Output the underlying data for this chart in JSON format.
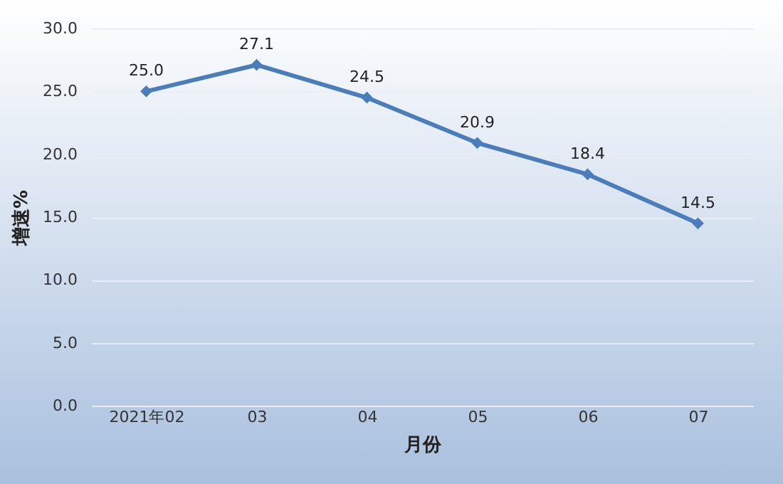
{
  "chart_data": {
    "type": "line",
    "xlabel": "月份",
    "ylabel": "增速%",
    "categories": [
      "2021年02",
      "03",
      "04",
      "05",
      "06",
      "07"
    ],
    "series": [
      {
        "color": "#4a7ebb",
        "values": [
          25.0,
          27.1,
          24.5,
          20.9,
          18.4,
          14.5
        ],
        "value_labels": [
          "25.0",
          "27.1",
          "24.5",
          "20.9",
          "18.4",
          "14.5"
        ]
      }
    ],
    "ylim": [
      0,
      30
    ],
    "yticks": [
      {
        "value": 0,
        "label": "0.0"
      },
      {
        "value": 5,
        "label": "5.0"
      },
      {
        "value": 10,
        "label": "10.0"
      },
      {
        "value": 15,
        "label": "15.0"
      },
      {
        "value": 20,
        "label": "20.0"
      },
      {
        "value": 25,
        "label": "25.0"
      },
      {
        "value": 30,
        "label": "30.0"
      }
    ],
    "grid": "y",
    "marker": "diamond",
    "line_style": "solid"
  }
}
